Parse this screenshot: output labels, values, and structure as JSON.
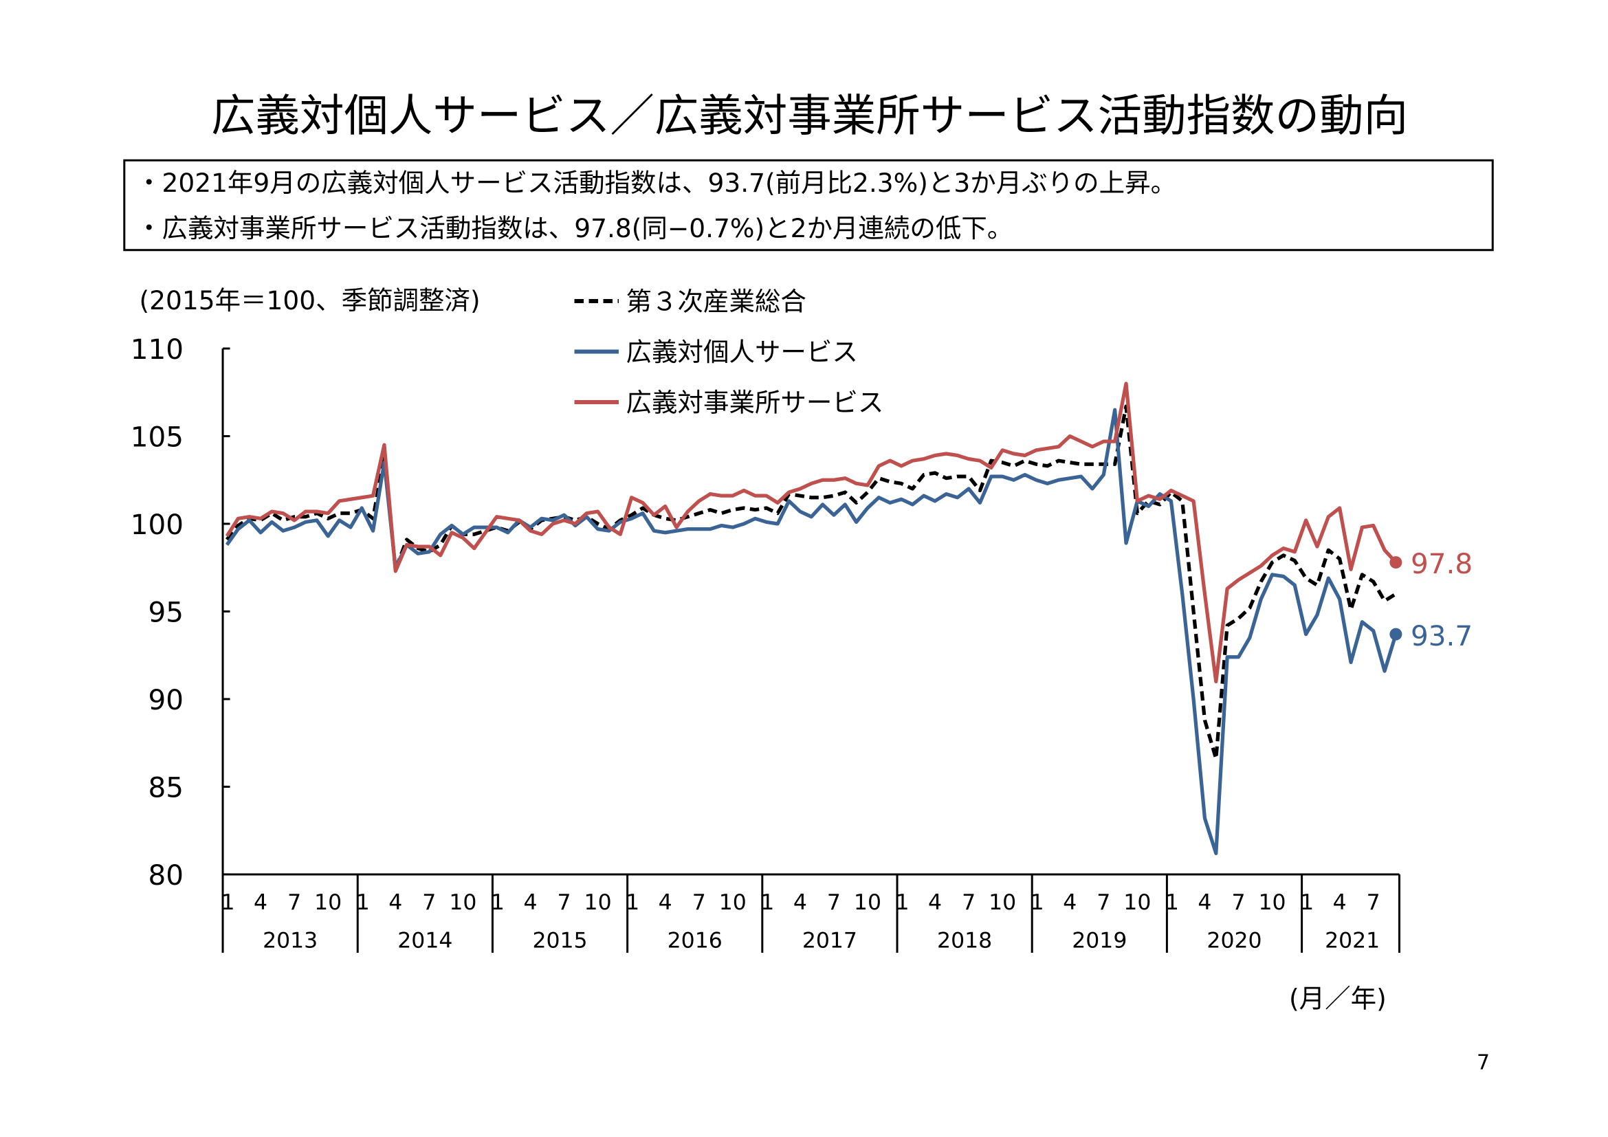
{
  "title": "広義対個人サービス／広義対事業所サービス活動指数の動向",
  "summary": [
    "・2021年9月の広義対個人サービス活動指数は、93.7(前月比2.3%)と3か月ぶりの上昇。",
    "・広義対事業所サービス活動指数は、97.8(同−0.7%)と2か月連続の低下。"
  ],
  "page_number": "7",
  "colors": {
    "personal": "#3A6496",
    "business": "#C0504D",
    "tertiary": "#000000"
  },
  "chart_data": {
    "type": "line",
    "unit_note": "(2015年＝100、季節調整済)",
    "xlabel": "(月／年)",
    "ylim": [
      80,
      110
    ],
    "yticks": [
      "80",
      "85",
      "90",
      "95",
      "100",
      "105",
      "110"
    ],
    "ytick_values": [
      80,
      85,
      90,
      95,
      100,
      105,
      110
    ],
    "month_ticks": [
      "1",
      "4",
      "7",
      "10"
    ],
    "years": [
      "2013",
      "2014",
      "2015",
      "2016",
      "2017",
      "2018",
      "2019",
      "2020",
      "2021"
    ],
    "start": "2013-01",
    "end": "2021-09",
    "legend_position": "top-center",
    "series": [
      {
        "key": "tertiary",
        "name": "第３次産業総合",
        "style": "dashed",
        "values": [
          99.1,
          99.9,
          100.3,
          100.2,
          100.6,
          100.2,
          100.4,
          100.4,
          100.6,
          100.3,
          100.6,
          100.6,
          100.8,
          100.3,
          103.9,
          97.4,
          99.1,
          98.6,
          98.4,
          98.8,
          99.9,
          99.4,
          99.4,
          99.6,
          99.8,
          99.6,
          100.1,
          99.7,
          100.2,
          100.3,
          100.4,
          100.2,
          100.4,
          100.0,
          99.7,
          100.2,
          100.5,
          100.9,
          100.5,
          100.3,
          100.2,
          100.4,
          100.6,
          100.8,
          100.6,
          100.8,
          100.9,
          100.8,
          100.9,
          100.6,
          101.7,
          101.6,
          101.5,
          101.5,
          101.6,
          101.8,
          101.2,
          101.8,
          102.6,
          102.4,
          102.3,
          102.0,
          102.8,
          102.9,
          102.6,
          102.7,
          102.7,
          101.9,
          103.6,
          103.5,
          103.3,
          103.6,
          103.4,
          103.3,
          103.6,
          103.5,
          103.4,
          103.4,
          103.4,
          103.4,
          106.7,
          100.6,
          101.3,
          101.1,
          101.8,
          101.3,
          95.0,
          88.8,
          86.6,
          94.2,
          94.6,
          95.2,
          96.7,
          97.8,
          98.2,
          97.9,
          96.9,
          96.5,
          98.5,
          98.0,
          95.1,
          97.1,
          96.7,
          95.6,
          96.0
        ]
      },
      {
        "key": "personal",
        "name": "広義対個人サービス",
        "style": "solid",
        "end_label": "93.7",
        "values": [
          98.8,
          99.7,
          100.2,
          99.5,
          100.1,
          99.6,
          99.8,
          100.1,
          100.2,
          99.3,
          100.2,
          99.8,
          100.9,
          99.6,
          103.5,
          97.5,
          98.8,
          98.3,
          98.4,
          99.4,
          99.9,
          99.4,
          99.8,
          99.8,
          99.8,
          99.5,
          100.2,
          99.8,
          100.3,
          100.2,
          100.5,
          99.9,
          100.4,
          99.7,
          99.6,
          100.1,
          100.3,
          100.6,
          99.6,
          99.5,
          99.6,
          99.7,
          99.7,
          99.7,
          99.9,
          99.8,
          100.0,
          100.3,
          100.1,
          100.0,
          101.3,
          100.7,
          100.4,
          101.1,
          100.5,
          101.1,
          100.1,
          100.9,
          101.5,
          101.2,
          101.4,
          101.1,
          101.6,
          101.3,
          101.7,
          101.5,
          102.0,
          101.2,
          102.7,
          102.7,
          102.5,
          102.8,
          102.5,
          102.3,
          102.5,
          102.6,
          102.7,
          102.0,
          102.8,
          106.5,
          98.9,
          101.3,
          101.0,
          101.7,
          101.3,
          96.0,
          90.0,
          83.2,
          81.2,
          92.4,
          92.4,
          93.5,
          95.7,
          97.1,
          97.0,
          96.5,
          93.7,
          94.8,
          96.9,
          95.7,
          92.1,
          94.4,
          93.9,
          91.6,
          93.7
        ]
      },
      {
        "key": "business",
        "name": "広義対事業所サービス",
        "style": "solid",
        "end_label": "97.8",
        "values": [
          99.3,
          100.3,
          100.4,
          100.3,
          100.7,
          100.6,
          100.2,
          100.7,
          100.7,
          100.6,
          101.3,
          101.4,
          101.5,
          101.6,
          104.5,
          97.3,
          98.8,
          98.7,
          98.7,
          98.2,
          99.5,
          99.2,
          98.6,
          99.5,
          100.4,
          100.3,
          100.2,
          99.6,
          99.4,
          100.0,
          100.2,
          100.0,
          100.6,
          100.7,
          99.8,
          99.4,
          101.5,
          101.2,
          100.5,
          101.0,
          99.8,
          100.7,
          101.3,
          101.7,
          101.6,
          101.6,
          101.9,
          101.6,
          101.6,
          101.2,
          101.8,
          102.0,
          102.3,
          102.5,
          102.5,
          102.6,
          102.3,
          102.2,
          103.3,
          103.6,
          103.3,
          103.6,
          103.7,
          103.9,
          104.0,
          103.9,
          103.7,
          103.6,
          103.2,
          104.2,
          104.0,
          103.9,
          104.2,
          104.3,
          104.4,
          105.0,
          104.7,
          104.4,
          104.7,
          104.7,
          108.0,
          101.3,
          101.6,
          101.4,
          101.9,
          101.6,
          101.3,
          96.0,
          91.0,
          96.3,
          96.8,
          97.2,
          97.6,
          98.2,
          98.6,
          98.4,
          100.2,
          98.7,
          100.4,
          100.9,
          97.4,
          99.8,
          99.9,
          98.5,
          97.8
        ]
      }
    ]
  }
}
